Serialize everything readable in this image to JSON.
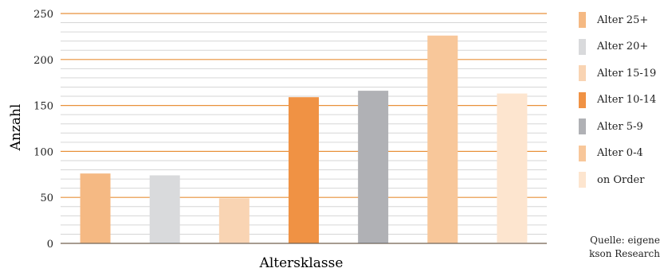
{
  "chart_data": {
    "type": "bar",
    "categories": [
      "Alter 25+",
      "Alter 20+",
      "Alter 15-19",
      "Alter 10-14",
      "Alter 5-9",
      "Alter 0-4",
      "on Order"
    ],
    "values": [
      76,
      74,
      49,
      159,
      166,
      226,
      163
    ],
    "colors": [
      "#f5b983",
      "#d9dadc",
      "#f9d4b3",
      "#f09244",
      "#b0b1b5",
      "#f8c79a",
      "#fde5cf"
    ],
    "xlabel": "Altersklasse",
    "ylabel": "Anzahl",
    "ylim": [
      0,
      250
    ],
    "yticks": [
      0,
      50,
      100,
      150,
      200,
      250
    ],
    "grid": true,
    "gridline_color": "#e8913a",
    "minor_gridline_color": "#d6d6d6",
    "legend": {
      "position": "right",
      "entries": [
        "Alter 25+",
        "Alter 20+",
        "Alter 15-19",
        "Alter 10-14",
        "Alter 5-9",
        "Alter 0-4",
        "on Order"
      ]
    }
  },
  "source": {
    "line1": "Quelle: eigene",
    "line2": "kson Research"
  }
}
